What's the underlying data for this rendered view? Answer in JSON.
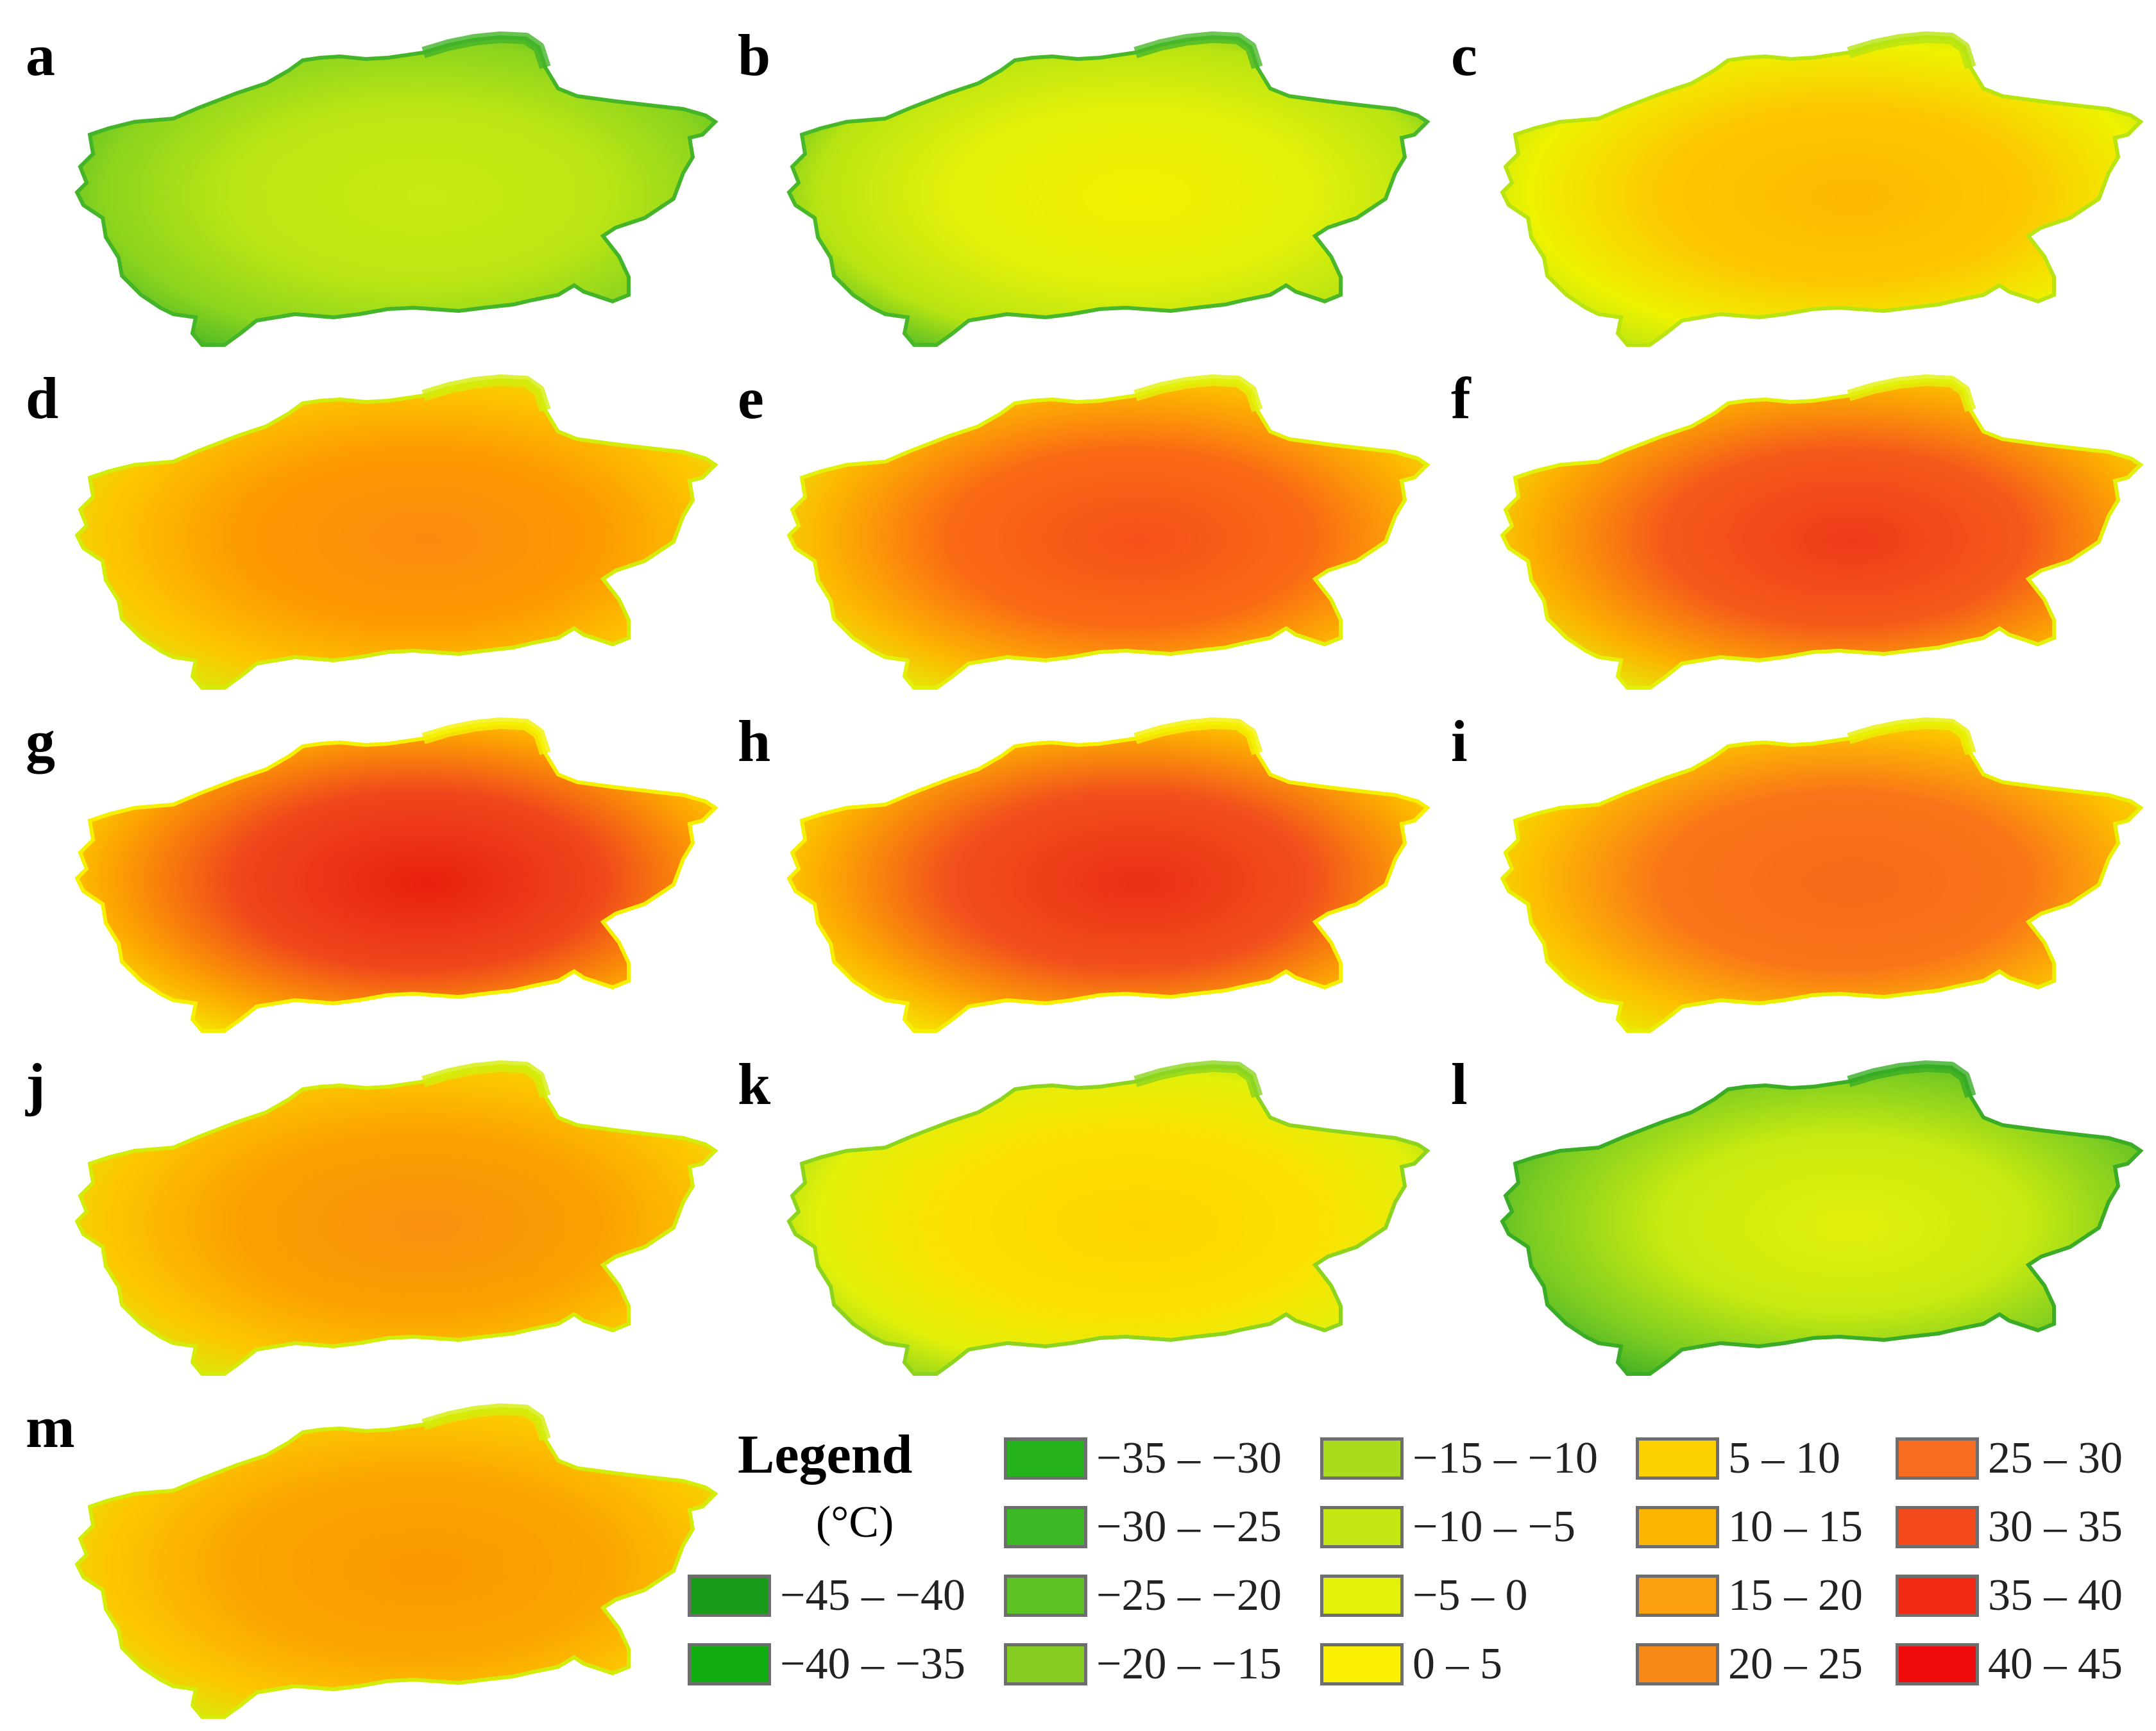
{
  "panels": [
    {
      "id": "a",
      "label": "a",
      "stops": [
        "#44b428",
        "#8cd41e",
        "#bce614",
        "#c8ea10"
      ]
    },
    {
      "id": "b",
      "label": "b",
      "stops": [
        "#48b82a",
        "#b8e412",
        "#e2f00a",
        "#f4f000"
      ]
    },
    {
      "id": "c",
      "label": "c",
      "stops": [
        "#b8e412",
        "#eef200",
        "#fdc700",
        "#fdb800"
      ]
    },
    {
      "id": "d",
      "label": "d",
      "stops": [
        "#d4ec0a",
        "#fdc700",
        "#fd9a00",
        "#fb8a10"
      ]
    },
    {
      "id": "e",
      "label": "e",
      "stops": [
        "#e2f00a",
        "#fdb800",
        "#fa6a14",
        "#f5501a"
      ]
    },
    {
      "id": "f",
      "label": "f",
      "stops": [
        "#e2f00a",
        "#fdb000",
        "#f55a1a",
        "#ef3a1a"
      ]
    },
    {
      "id": "g",
      "label": "g",
      "stops": [
        "#f4f000",
        "#fda800",
        "#f0461c",
        "#e8200e"
      ]
    },
    {
      "id": "h",
      "label": "h",
      "stops": [
        "#f4f000",
        "#fdb000",
        "#f2501c",
        "#ea2e14"
      ]
    },
    {
      "id": "i",
      "label": "i",
      "stops": [
        "#e8f000",
        "#fdc000",
        "#f97418",
        "#f66a18"
      ]
    },
    {
      "id": "j",
      "label": "j",
      "stops": [
        "#d4ec0a",
        "#fdc700",
        "#fba000",
        "#f99010"
      ]
    },
    {
      "id": "k",
      "label": "k",
      "stops": [
        "#8cd41e",
        "#e2f00a",
        "#fde000",
        "#fdd400"
      ]
    },
    {
      "id": "l",
      "label": "l",
      "stops": [
        "#3aac26",
        "#7ccc22",
        "#c8ea10",
        "#e2f00a"
      ]
    },
    {
      "id": "m",
      "label": "m",
      "stops": [
        "#d4ec0a",
        "#fdc700",
        "#fba400",
        "#fb9800"
      ]
    }
  ],
  "legend": {
    "title": "Legend",
    "unit": "(°C)",
    "items": [
      {
        "label": "−45 – −40",
        "color": "#1a9a1a"
      },
      {
        "label": "−40 – −35",
        "color": "#10ac10"
      },
      {
        "label": "−35 – −30",
        "color": "#26b21c"
      },
      {
        "label": "−30 – −25",
        "color": "#3cb824"
      },
      {
        "label": "−25 – −20",
        "color": "#5cc224"
      },
      {
        "label": "−20 – −15",
        "color": "#84cc20"
      },
      {
        "label": "−15 – −10",
        "color": "#a8dc1c"
      },
      {
        "label": "−10 – −5",
        "color": "#c4e612"
      },
      {
        "label": "−5 – 0",
        "color": "#e2f00a"
      },
      {
        "label": "0 – 5",
        "color": "#fbf000"
      },
      {
        "label": "5 – 10",
        "color": "#fdd000"
      },
      {
        "label": "10 – 15",
        "color": "#fdb600"
      },
      {
        "label": "15 – 20",
        "color": "#fca010"
      },
      {
        "label": "20 – 25",
        "color": "#f98a18"
      },
      {
        "label": "25 – 30",
        "color": "#f76c20"
      },
      {
        "label": "30 – 35",
        "color": "#f54a1c"
      },
      {
        "label": "35 – 40",
        "color": "#f02a14"
      },
      {
        "label": "40 – 45",
        "color": "#ee0a0a"
      }
    ]
  }
}
